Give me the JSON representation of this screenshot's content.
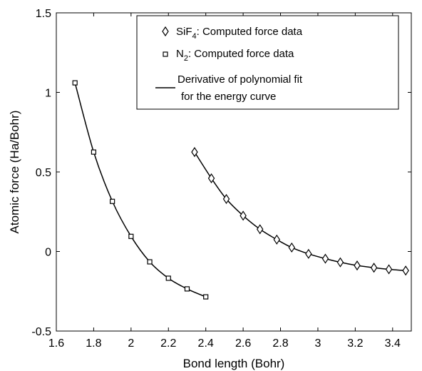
{
  "chart_data": {
    "type": "scatter",
    "title": "",
    "xlabel": "Bond length (Bohr)",
    "ylabel": "Atomic force (Ha/Bohr)",
    "xlim": [
      1.6,
      3.5
    ],
    "ylim": [
      -0.5,
      1.5
    ],
    "xticks": [
      1.6,
      1.8,
      2,
      2.2,
      2.4,
      2.6,
      2.8,
      3,
      3.2,
      3.4
    ],
    "xtick_labels": [
      "1.6",
      "1.8",
      "2",
      "2.2",
      "2.4",
      "2.6",
      "2.8",
      "3",
      "3.2",
      "3.4"
    ],
    "yticks": [
      -0.5,
      0,
      0.5,
      1,
      1.5
    ],
    "ytick_labels": [
      "-0.5",
      "0",
      "0.5",
      "1",
      "1.5"
    ],
    "grid": false,
    "legend_position": "top-right",
    "series": [
      {
        "name_main": "SiF",
        "name_sub": "4",
        "name_rest": ": Computed force data",
        "marker": "diamond",
        "x": [
          2.34,
          2.43,
          2.51,
          2.6,
          2.69,
          2.78,
          2.86,
          2.95,
          3.04,
          3.12,
          3.21,
          3.3,
          3.38,
          3.47
        ],
        "y": [
          0.625,
          0.46,
          0.33,
          0.225,
          0.14,
          0.075,
          0.025,
          -0.015,
          -0.045,
          -0.068,
          -0.088,
          -0.102,
          -0.112,
          -0.12
        ]
      },
      {
        "name_main": "N",
        "name_sub": "2",
        "name_rest": ": Computed force data",
        "marker": "square",
        "x": [
          1.7,
          1.8,
          1.9,
          2.0,
          2.1,
          2.2,
          2.3,
          2.4
        ],
        "y": [
          1.06,
          0.625,
          0.315,
          0.095,
          -0.065,
          -0.168,
          -0.235,
          -0.285
        ]
      },
      {
        "name_line1": "Derivative of polynomial fit",
        "name_line2": "for the energy curve",
        "marker": "line"
      }
    ]
  }
}
